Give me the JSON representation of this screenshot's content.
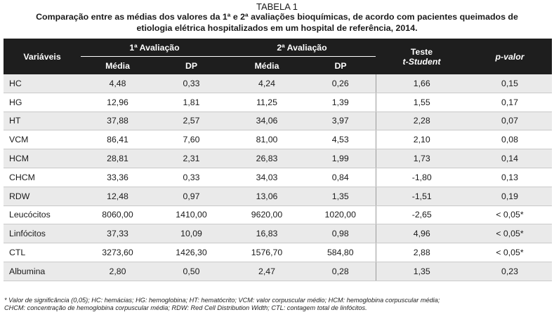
{
  "table_label": "TABELA 1",
  "caption_line1": "Comparação entre as médias dos valores da 1ª e 2ª avaliações bioquímicas, de acordo com pacientes queimados de",
  "caption_line2": "etiologia elétrica hospitalizados em um hospital de referência, 2014.",
  "header": {
    "variaveis": "Variáveis",
    "aval1": "1ª Avaliação",
    "aval2": "2ª Avaliação",
    "media": "Média",
    "dp": "DP",
    "teste_line1": "Teste",
    "teste_line2": "t-Student",
    "pvalor": "p-valor"
  },
  "rows": [
    {
      "name": "HC",
      "m1": "4,48",
      "dp1": "0,33",
      "m2": "4,24",
      "dp2": "0,26",
      "t": "1,66",
      "p": "0,15"
    },
    {
      "name": "HG",
      "m1": "12,96",
      "dp1": "1,81",
      "m2": "11,25",
      "dp2": "1,39",
      "t": "1,55",
      "p": "0,17"
    },
    {
      "name": "HT",
      "m1": "37,88",
      "dp1": "2,57",
      "m2": "34,06",
      "dp2": "3,97",
      "t": "2,28",
      "p": "0,07"
    },
    {
      "name": "VCM",
      "m1": "86,41",
      "dp1": "7,60",
      "m2": "81,00",
      "dp2": "4,53",
      "t": "2,10",
      "p": "0,08"
    },
    {
      "name": "HCM",
      "m1": "28,81",
      "dp1": "2,31",
      "m2": "26,83",
      "dp2": "1,99",
      "t": "1,73",
      "p": "0,14"
    },
    {
      "name": "CHCM",
      "m1": "33,36",
      "dp1": "0,33",
      "m2": "34,03",
      "dp2": "0,84",
      "t": "-1,80",
      "p": "0,13"
    },
    {
      "name": "RDW",
      "m1": "12,48",
      "dp1": "0,97",
      "m2": "13,06",
      "dp2": "1,35",
      "t": "-1,51",
      "p": "0,19"
    },
    {
      "name": "Leucócitos",
      "m1": "8060,00",
      "dp1": "1410,00",
      "m2": "9620,00",
      "dp2": "1020,00",
      "t": "-2,65",
      "p": "< 0,05*"
    },
    {
      "name": "Linfócitos",
      "m1": "37,33",
      "dp1": "10,09",
      "m2": "16,83",
      "dp2": "0,98",
      "t": "4,96",
      "p": "< 0,05*"
    },
    {
      "name": "CTL",
      "m1": "3273,60",
      "dp1": "1426,30",
      "m2": "1576,70",
      "dp2": "584,80",
      "t": "2,88",
      "p": "< 0,05*"
    },
    {
      "name": "Albumina",
      "m1": "2,80",
      "dp1": "0,50",
      "m2": "2,47",
      "dp2": "0,28",
      "t": "1,35",
      "p": "0,23"
    }
  ],
  "footnote_line1": "* Valor de significância (0,05); HC: hemácias; HG: hemoglobina; HT: hematócrito; VCM: valor corpuscular médio; HCM: hemoglobina corpuscular média;",
  "footnote_line2": "CHCM: concentração de hemoglobina corpuscular média; RDW: Red Cell Distribution Width; CTL: contagem total de linfócitos."
}
